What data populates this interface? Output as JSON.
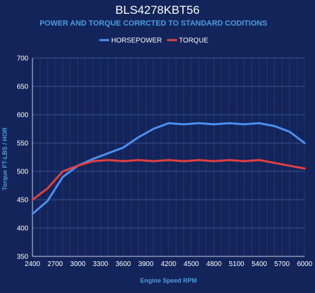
{
  "chart_data": {
    "type": "line",
    "title": "BLS4278KBT56",
    "subtitle": "POWER AND TORQUE CORRCTED TO STANDARD CODITIONS",
    "xlabel": "Engine Speed RPM",
    "ylabel": "Torque FT-LBS / HOR",
    "xlim": [
      2400,
      6000
    ],
    "ylim": [
      350,
      700
    ],
    "x_ticks": [
      "2400",
      "2700",
      "3000",
      "3300",
      "3600",
      "3900",
      "4200",
      "4500",
      "4800",
      "5100",
      "5400",
      "5700",
      "6000"
    ],
    "y_ticks": [
      "350",
      "400",
      "450",
      "500",
      "550",
      "600",
      "650",
      "700"
    ],
    "legend_position": "top-center",
    "grid": true,
    "x": [
      2400,
      2600,
      2800,
      3000,
      3200,
      3400,
      3600,
      3800,
      4000,
      4200,
      4400,
      4600,
      4800,
      5000,
      5200,
      5400,
      5600,
      5800,
      6000
    ],
    "series": [
      {
        "name": "HORSEPOWER",
        "color": "#4b8ff0",
        "values": [
          425,
          448,
          490,
          510,
          522,
          532,
          542,
          560,
          575,
          585,
          583,
          585,
          583,
          585,
          583,
          585,
          580,
          570,
          550
        ]
      },
      {
        "name": "TORQUE",
        "color": "#e04040",
        "values": [
          450,
          470,
          500,
          510,
          518,
          520,
          518,
          520,
          518,
          520,
          518,
          520,
          518,
          520,
          518,
          520,
          515,
          510,
          505
        ]
      }
    ]
  },
  "colors": {
    "background": "#13245a",
    "grid": "#2d4281",
    "axis_label": "#4a9de0"
  }
}
